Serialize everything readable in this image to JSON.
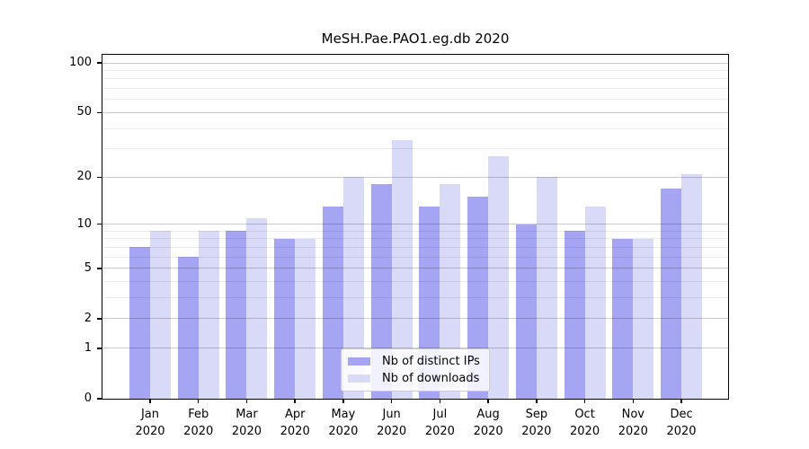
{
  "title": "MeSH.Pae.PAO1.eg.db 2020",
  "chart_data": {
    "type": "bar",
    "title": "MeSH.Pae.PAO1.eg.db 2020",
    "year": "2020",
    "months": [
      "Jan",
      "Feb",
      "Mar",
      "Apr",
      "May",
      "Jun",
      "Jul",
      "Aug",
      "Sep",
      "Oct",
      "Nov",
      "Dec"
    ],
    "categories": [
      "Jan 2020",
      "Feb 2020",
      "Mar 2020",
      "Apr 2020",
      "May 2020",
      "Jun 2020",
      "Jul 2020",
      "Aug 2020",
      "Sep 2020",
      "Oct 2020",
      "Nov 2020",
      "Dec 2020"
    ],
    "series": [
      {
        "name": "Nb of distinct IPs",
        "color": "#a5a5f3",
        "values": [
          7,
          6,
          9,
          8,
          13,
          18,
          13,
          15,
          10,
          9,
          8,
          17
        ]
      },
      {
        "name": "Nb of downloads",
        "color": "#d9d9f8",
        "values": [
          9,
          9,
          11,
          8,
          20,
          34,
          18,
          27,
          20,
          13,
          8,
          21
        ]
      }
    ],
    "yscale": "log1p",
    "ylim": [
      0,
      112
    ],
    "yticks": [
      0,
      1,
      2,
      5,
      10,
      20,
      50,
      100
    ],
    "minor_gridlines": [
      3,
      4,
      6,
      7,
      8,
      9,
      30,
      40,
      60,
      70,
      80,
      90
    ],
    "grid": true,
    "legend_position": "lower center",
    "xlabel": "",
    "ylabel": ""
  },
  "colors": {
    "axis": "#000000",
    "grid_major": "#cccccc",
    "grid_minor": "#ebebeb",
    "legend_border": "#cccccc",
    "background": "#ffffff"
  }
}
